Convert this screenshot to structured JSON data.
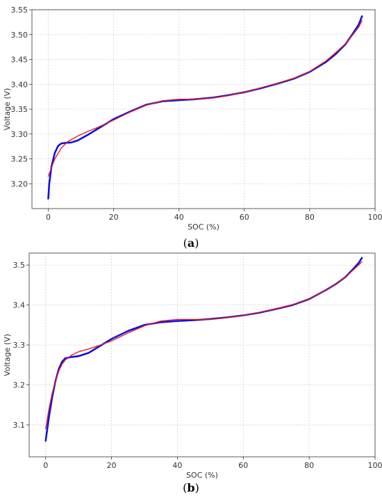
{
  "chart_data": [
    {
      "type": "line",
      "panel_label": "a",
      "xlabel": "SOC (%)",
      "ylabel": "Voltage (V)",
      "xlim": [
        -5,
        100
      ],
      "ylim": [
        3.15,
        3.55
      ],
      "xticks": [
        0,
        20,
        40,
        60,
        80,
        100
      ],
      "yticks": [
        3.2,
        3.25,
        3.3,
        3.35,
        3.4,
        3.45,
        3.5,
        3.55
      ],
      "ytick_labels": [
        "3.20",
        "3.25",
        "3.30",
        "3.35",
        "3.40",
        "3.45",
        "3.50",
        "3.55"
      ],
      "grid": true,
      "series": [
        {
          "color": "#1010e0",
          "x": [
            0,
            0.3,
            1,
            2,
            3,
            4,
            5,
            7,
            9,
            12,
            15,
            20,
            25,
            30,
            35,
            40,
            45,
            50,
            55,
            60,
            65,
            70,
            75,
            80,
            85,
            88,
            91,
            93,
            95,
            96
          ],
          "y": [
            3.17,
            3.2,
            3.235,
            3.262,
            3.276,
            3.281,
            3.282,
            3.283,
            3.287,
            3.298,
            3.31,
            3.33,
            3.345,
            3.359,
            3.366,
            3.368,
            3.37,
            3.373,
            3.378,
            3.384,
            3.392,
            3.401,
            3.411,
            3.425,
            3.445,
            3.461,
            3.481,
            3.5,
            3.52,
            3.537
          ]
        },
        {
          "color": "#e02020",
          "x": [
            0,
            2,
            4,
            6,
            9,
            12,
            15,
            20,
            25,
            30,
            35,
            40,
            45,
            50,
            55,
            60,
            65,
            70,
            75,
            80,
            85,
            88,
            91,
            93,
            95,
            96
          ],
          "y": [
            3.215,
            3.25,
            3.272,
            3.285,
            3.296,
            3.305,
            3.313,
            3.328,
            3.344,
            3.358,
            3.367,
            3.37,
            3.37,
            3.372,
            3.377,
            3.384,
            3.393,
            3.402,
            3.412,
            3.426,
            3.447,
            3.464,
            3.482,
            3.498,
            3.515,
            3.528
          ]
        }
      ]
    },
    {
      "type": "line",
      "panel_label": "b",
      "xlabel": "SOC (%)",
      "ylabel": "Voltage (V)",
      "xlim": [
        -5,
        100
      ],
      "ylim": [
        3.02,
        3.53
      ],
      "xticks": [
        0,
        20,
        40,
        60,
        80,
        100
      ],
      "yticks": [
        3.1,
        3.2,
        3.3,
        3.4,
        3.5
      ],
      "ytick_labels": [
        "3.1",
        "3.2",
        "3.3",
        "3.4",
        "3.5"
      ],
      "grid": true,
      "series": [
        {
          "color": "#1010e0",
          "x": [
            0,
            0.5,
            1,
            2,
            3,
            4,
            5,
            6,
            8,
            10,
            13,
            16,
            20,
            25,
            30,
            35,
            40,
            45,
            50,
            55,
            60,
            65,
            70,
            75,
            80,
            85,
            88,
            91,
            93,
            95,
            96
          ],
          "y": [
            3.06,
            3.09,
            3.12,
            3.17,
            3.21,
            3.24,
            3.258,
            3.267,
            3.27,
            3.272,
            3.28,
            3.295,
            3.315,
            3.335,
            3.35,
            3.357,
            3.36,
            3.362,
            3.365,
            3.369,
            3.374,
            3.381,
            3.39,
            3.4,
            3.415,
            3.437,
            3.452,
            3.47,
            3.487,
            3.505,
            3.518
          ]
        },
        {
          "color": "#e02020",
          "x": [
            0,
            1,
            2,
            3,
            4,
            5,
            6,
            8,
            10,
            13,
            16,
            20,
            25,
            30,
            35,
            40,
            45,
            50,
            55,
            60,
            65,
            70,
            75,
            80,
            85,
            88,
            91,
            93,
            95,
            96
          ],
          "y": [
            3.09,
            3.14,
            3.18,
            3.21,
            3.235,
            3.252,
            3.263,
            3.275,
            3.283,
            3.29,
            3.298,
            3.31,
            3.33,
            3.348,
            3.36,
            3.364,
            3.364,
            3.364,
            3.368,
            3.374,
            3.382,
            3.391,
            3.401,
            3.416,
            3.437,
            3.453,
            3.47,
            3.485,
            3.5,
            3.508
          ]
        }
      ]
    }
  ]
}
